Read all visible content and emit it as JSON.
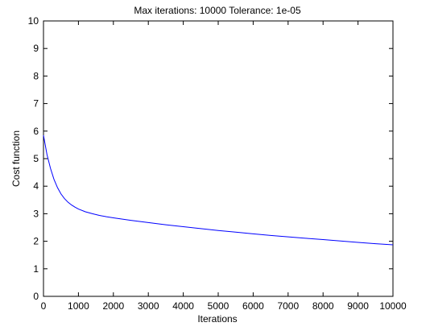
{
  "chart_data": {
    "type": "line",
    "title": "Max iterations: 10000 Tolerance: 1e-05",
    "xlabel": "Iterations",
    "ylabel": "Cost function",
    "xlim": [
      0,
      10000
    ],
    "ylim": [
      0,
      10
    ],
    "xticks": [
      0,
      1000,
      2000,
      3000,
      4000,
      5000,
      6000,
      7000,
      8000,
      9000,
      10000
    ],
    "yticks": [
      0,
      1,
      2,
      3,
      4,
      5,
      6,
      7,
      8,
      9,
      10
    ],
    "grid": false,
    "series": [
      {
        "color": "#0000ff",
        "x": [
          0,
          100,
          200,
          300,
          400,
          500,
          600,
          700,
          800,
          900,
          1000,
          1200,
          1400,
          1600,
          1800,
          2000,
          2500,
          3000,
          3500,
          4000,
          4500,
          5000,
          5500,
          6000,
          6500,
          7000,
          7500,
          8000,
          8500,
          9000,
          9500,
          10000
        ],
        "y": [
          5.85,
          5.15,
          4.65,
          4.25,
          3.95,
          3.72,
          3.55,
          3.42,
          3.32,
          3.24,
          3.17,
          3.07,
          3.0,
          2.94,
          2.89,
          2.85,
          2.76,
          2.68,
          2.6,
          2.53,
          2.46,
          2.39,
          2.33,
          2.27,
          2.21,
          2.16,
          2.11,
          2.06,
          2.01,
          1.96,
          1.91,
          1.87
        ]
      }
    ]
  }
}
